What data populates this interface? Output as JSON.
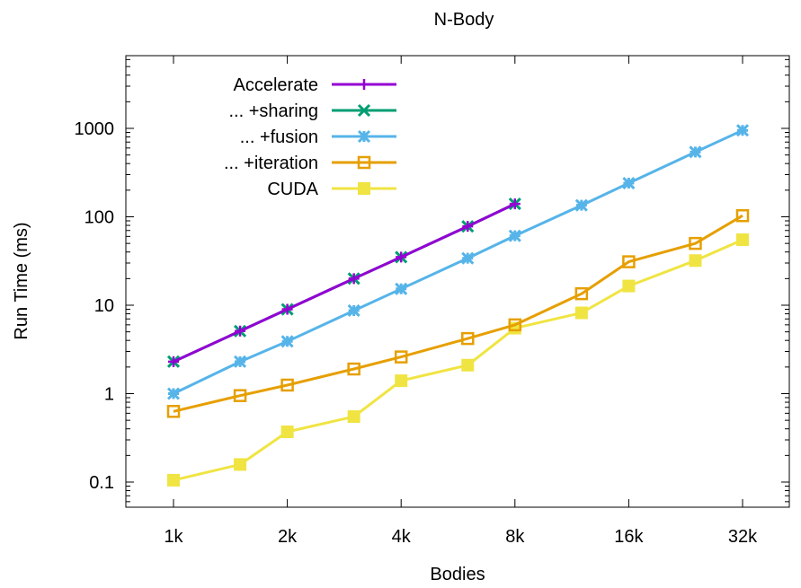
{
  "chart_data": {
    "type": "line",
    "title": "N-Body",
    "xlabel": "Bodies",
    "ylabel": "Run Time (ms)",
    "x_scale": "log2",
    "y_scale": "log10",
    "xlim": [
      768,
      40000
    ],
    "ylim": [
      0.05,
      5000
    ],
    "x_ticks": [
      {
        "value": 1024,
        "label": "1k"
      },
      {
        "value": 2048,
        "label": "2k"
      },
      {
        "value": 4096,
        "label": "4k"
      },
      {
        "value": 8192,
        "label": "8k"
      },
      {
        "value": 16384,
        "label": "16k"
      },
      {
        "value": 32768,
        "label": "32k"
      }
    ],
    "y_ticks": [
      {
        "value": 0.1,
        "label": "0.1"
      },
      {
        "value": 1,
        "label": "1"
      },
      {
        "value": 10,
        "label": "10"
      },
      {
        "value": 100,
        "label": "100"
      },
      {
        "value": 1000,
        "label": "1000"
      }
    ],
    "grid": false,
    "legend_position": "top-left",
    "series": [
      {
        "name": "Accelerate",
        "color": "#9400d3",
        "marker": "plus",
        "x": [
          1024,
          1536,
          2048,
          3072,
          4096,
          6144,
          8192
        ],
        "y": [
          2.3,
          5.1,
          9.0,
          20,
          35,
          78,
          140
        ]
      },
      {
        "name": "... +sharing",
        "color": "#009e73",
        "marker": "cross",
        "x": [
          1024,
          1536,
          2048,
          3072,
          4096,
          6144,
          8192
        ],
        "y": [
          2.3,
          5.1,
          9.0,
          20,
          35,
          78,
          140
        ]
      },
      {
        "name": "... +fusion",
        "color": "#56b4e9",
        "marker": "star",
        "x": [
          1024,
          1536,
          2048,
          3072,
          4096,
          6144,
          8192,
          12288,
          16384,
          24576,
          32768
        ],
        "y": [
          1.0,
          2.3,
          3.9,
          8.7,
          15.3,
          34,
          61,
          135,
          240,
          540,
          950
        ]
      },
      {
        "name": "... +iteration",
        "color": "#e69f00",
        "marker": "open-square",
        "x": [
          1024,
          1536,
          2048,
          3072,
          4096,
          6144,
          8192,
          12288,
          16384,
          24576,
          32768
        ],
        "y": [
          0.63,
          0.95,
          1.25,
          1.9,
          2.6,
          4.2,
          6.0,
          13.5,
          31,
          50,
          103
        ]
      },
      {
        "name": "CUDA",
        "color": "#f0e442",
        "marker": "filled-square",
        "x": [
          1024,
          1536,
          2048,
          3072,
          4096,
          6144,
          8192,
          12288,
          16384,
          24576,
          32768
        ],
        "y": [
          0.105,
          0.158,
          0.37,
          0.55,
          1.4,
          2.1,
          5.5,
          8.2,
          16.5,
          32,
          55
        ]
      }
    ]
  }
}
